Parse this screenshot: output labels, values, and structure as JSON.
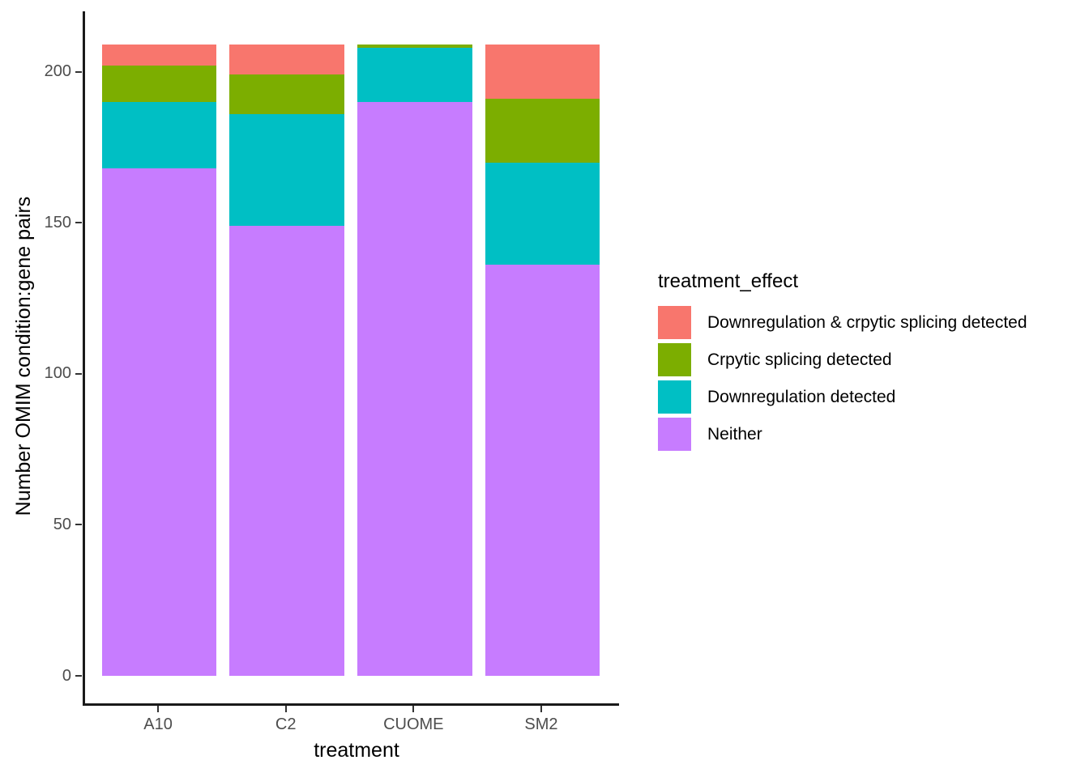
{
  "chart_data": {
    "type": "bar",
    "stacked": true,
    "orientation": "vertical",
    "title": "",
    "xlabel": "treatment",
    "ylabel": "Number OMIM condition:gene pairs",
    "categories": [
      "A10",
      "C2",
      "CUOME",
      "SM2"
    ],
    "series": [
      {
        "name": "Downregulation & crpytic splicing detected",
        "color": "#F8766D",
        "values": [
          7,
          10,
          0,
          18
        ]
      },
      {
        "name": "Crpytic splicing detected",
        "color": "#7CAE00",
        "values": [
          12,
          13,
          1,
          21
        ]
      },
      {
        "name": "Downregulation detected",
        "color": "#00BFC4",
        "values": [
          22,
          37,
          18,
          34
        ]
      },
      {
        "name": "Neither",
        "color": "#C77CFF",
        "values": [
          168,
          149,
          190,
          136
        ]
      }
    ],
    "stack_order_bottom_to_top": [
      "Neither",
      "Downregulation detected",
      "Crpytic splicing detected",
      "Downregulation & crpytic splicing detected"
    ],
    "totals": [
      209,
      209,
      209,
      209
    ],
    "ylim": [
      0,
      220
    ],
    "yticks": [
      0,
      50,
      100,
      150,
      200
    ],
    "grid": false,
    "legend": {
      "title": "treatment_effect",
      "position": "right"
    },
    "style": {
      "background": "#FFFFFF",
      "axis_text_color": "#4D4D4D",
      "axis_title_color": "#000000",
      "axis_line_color": "#1A1A1A",
      "tick_color": "#333333"
    }
  }
}
